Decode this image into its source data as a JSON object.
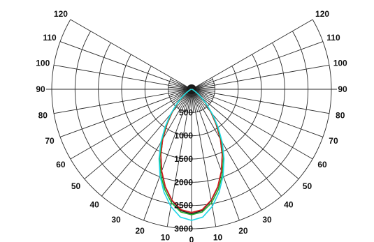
{
  "chart_data": {
    "type": "line",
    "title": "",
    "angle_labels": [
      "120",
      "110",
      "100",
      "90",
      "80",
      "70",
      "60",
      "50",
      "40",
      "30",
      "20",
      "10",
      "0"
    ],
    "angle_ticks": [
      120,
      110,
      100,
      90,
      80,
      70,
      60,
      50,
      40,
      30,
      20,
      10,
      0
    ],
    "radial_labels": [
      "500",
      "1000",
      "1500",
      "2000",
      "2500",
      "3000"
    ],
    "radial_ticks": [
      500,
      1000,
      1500,
      2000,
      2500,
      3000
    ],
    "radial_max": 3000,
    "grid": true,
    "series": [
      {
        "color": "#1f1f1f",
        "angles": [
          0,
          5,
          10,
          15,
          20,
          25,
          30,
          35,
          40,
          45,
          50,
          55,
          60,
          70,
          80,
          90
        ],
        "values": [
          2680,
          2620,
          2430,
          2180,
          1880,
          1560,
          1240,
          920,
          650,
          420,
          250,
          140,
          75,
          30,
          12,
          4
        ]
      },
      {
        "color": "#d42020",
        "angles": [
          0,
          5,
          10,
          15,
          20,
          25,
          30,
          35,
          40,
          45,
          50,
          55,
          60,
          70,
          80,
          90
        ],
        "values": [
          2650,
          2600,
          2420,
          2170,
          1870,
          1555,
          1235,
          915,
          645,
          415,
          248,
          138,
          74,
          30,
          12,
          4
        ]
      },
      {
        "color": "#1fae2a",
        "angles": [
          0,
          5,
          10,
          15,
          20,
          25,
          30,
          35,
          40,
          45,
          50,
          55,
          60,
          70,
          80,
          90
        ],
        "values": [
          2700,
          2650,
          2480,
          2230,
          1940,
          1620,
          1290,
          960,
          680,
          440,
          265,
          148,
          80,
          32,
          13,
          4
        ]
      },
      {
        "color": "#1fd8e8",
        "angles": [
          0,
          5,
          10,
          15,
          20,
          25,
          30,
          35,
          40,
          45,
          50,
          55,
          60,
          70,
          80,
          90
        ],
        "values": [
          2820,
          2760,
          2560,
          2290,
          1980,
          1650,
          1320,
          990,
          700,
          455,
          275,
          152,
          82,
          33,
          13,
          4
        ]
      }
    ]
  }
}
